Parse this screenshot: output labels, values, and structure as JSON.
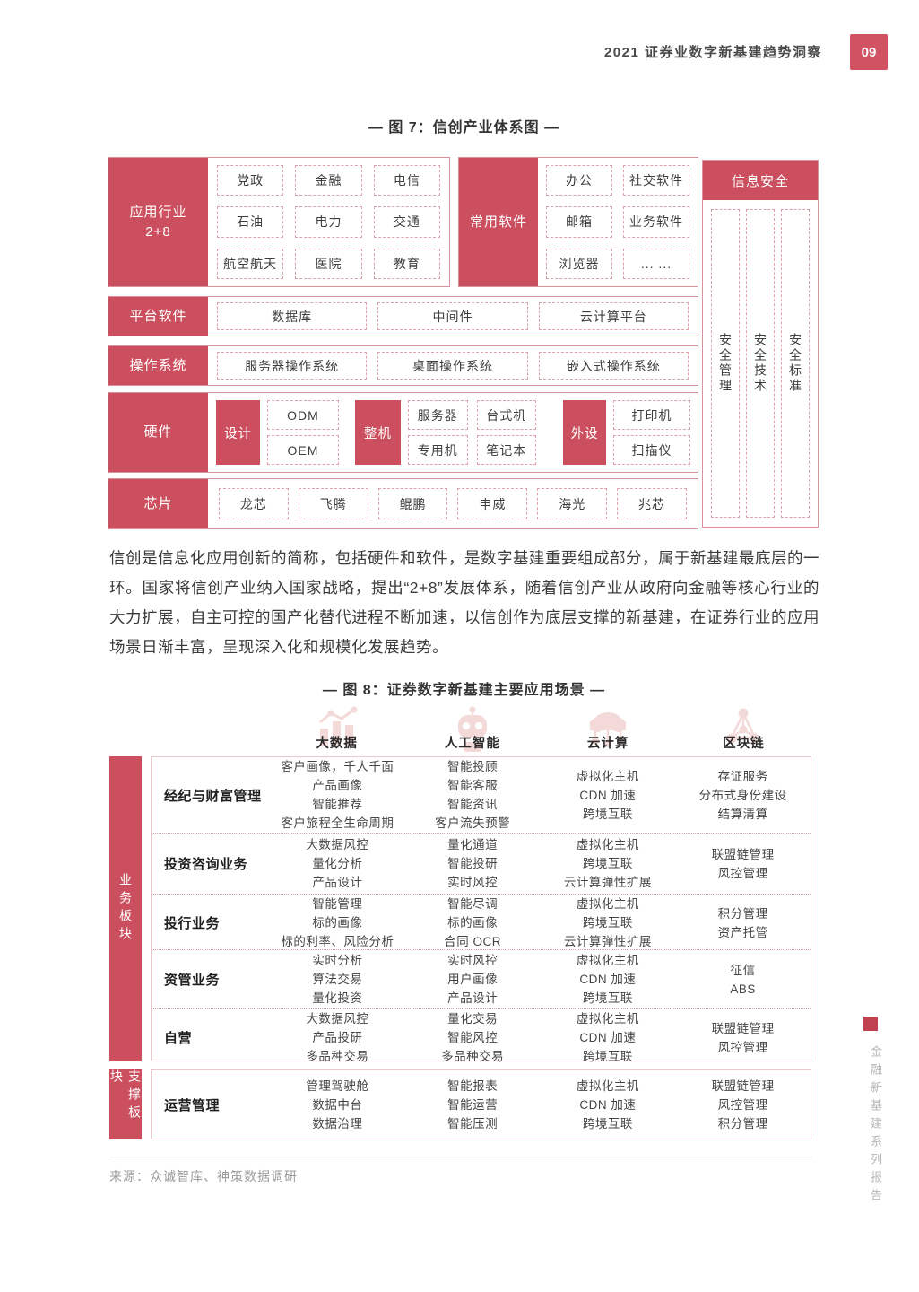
{
  "header": {
    "title": "2021 证券业数字新基建趋势洞察",
    "page_number": "09"
  },
  "fig7": {
    "title": "— 图 7：信创产业体系图 —",
    "rows": {
      "app": {
        "label": "应用行业\n2+8",
        "items": [
          "党政",
          "金融",
          "电信",
          "石油",
          "电力",
          "交通",
          "航空航天",
          "医院",
          "教育"
        ]
      },
      "software": {
        "label": "常用软件",
        "items": [
          "办公",
          "社交软件",
          "邮箱",
          "业务软件",
          "浏览器",
          "... ..."
        ]
      },
      "platform": {
        "label": "平台软件",
        "items": [
          "数据库",
          "中间件",
          "云计算平台"
        ]
      },
      "os": {
        "label": "操作系统",
        "items": [
          "服务器操作系统",
          "桌面操作系统",
          "嵌入式操作系统"
        ]
      },
      "hardware": {
        "label": "硬件",
        "groups": [
          {
            "label": "设计",
            "items": [
              "ODM",
              "OEM"
            ]
          },
          {
            "label": "整机",
            "items": [
              "服务器",
              "台式机",
              "专用机",
              "笔记本"
            ]
          },
          {
            "label": "外设",
            "items": [
              "打印机",
              "扫描仪"
            ]
          }
        ]
      },
      "chips": {
        "label": "芯片",
        "items": [
          "龙芯",
          "飞腾",
          "鲲鹏",
          "申威",
          "海光",
          "兆芯"
        ]
      }
    },
    "security": {
      "label": "信息安全",
      "columns": [
        "安全管理",
        "安全技术",
        "安全标准"
      ]
    }
  },
  "body_text": "信创是信息化应用创新的简称，包括硬件和软件，是数字基建重要组成部分，属于新基建最底层的一环。国家将信创产业纳入国家战略，提出“2+8”发展体系，随着信创产业从政府向金融等核心行业的大力扩展，自主可控的国产化替代进程不断加速，以信创作为底层支撑的新基建，在证券行业的应用场景日渐丰富，呈现深入化和规模化发展趋势。",
  "fig8": {
    "title": "— 图 8：证券数字新基建主要应用场景 —",
    "columns": [
      {
        "name": "大数据",
        "icon": "bar-chart-icon"
      },
      {
        "name": "人工智能",
        "icon": "robot-icon"
      },
      {
        "name": "云计算",
        "icon": "cloud-icon"
      },
      {
        "name": "区块链",
        "icon": "blockchain-icon"
      }
    ],
    "sections": [
      "业务板块",
      "支撑板块"
    ],
    "rows": [
      {
        "label": "经纪与财富管理",
        "section": 0,
        "cells": [
          [
            "客户画像，千人千面",
            "产品画像",
            "智能推荐",
            "客户旅程全生命周期"
          ],
          [
            "智能投顾",
            "智能客服",
            "智能资讯",
            "客户流失预警"
          ],
          [
            "虚拟化主机",
            "CDN 加速",
            "跨境互联"
          ],
          [
            "存证服务",
            "分布式身份建设",
            "结算清算"
          ]
        ]
      },
      {
        "label": "投资咨询业务",
        "section": 0,
        "cells": [
          [
            "大数据风控",
            "量化分析",
            "产品设计"
          ],
          [
            "量化通道",
            "智能投研",
            "实时风控"
          ],
          [
            "虚拟化主机",
            "跨境互联",
            "云计算弹性扩展"
          ],
          [
            "联盟链管理",
            "风控管理"
          ]
        ]
      },
      {
        "label": "投行业务",
        "section": 0,
        "cells": [
          [
            "智能管理",
            "标的画像",
            "标的利率、风险分析"
          ],
          [
            "智能尽调",
            "标的画像",
            "合同 OCR"
          ],
          [
            "虚拟化主机",
            "跨境互联",
            "云计算弹性扩展"
          ],
          [
            "积分管理",
            "资产托管"
          ]
        ]
      },
      {
        "label": "资管业务",
        "section": 0,
        "cells": [
          [
            "实时分析",
            "算法交易",
            "量化投资"
          ],
          [
            "实时风控",
            "用户画像",
            "产品设计"
          ],
          [
            "虚拟化主机",
            "CDN 加速",
            "跨境互联"
          ],
          [
            "征信",
            "ABS"
          ]
        ]
      },
      {
        "label": "自营",
        "section": 0,
        "cells": [
          [
            "大数据风控",
            "产品投研",
            "多品种交易"
          ],
          [
            "量化交易",
            "智能风控",
            "多品种交易"
          ],
          [
            "虚拟化主机",
            "CDN 加速",
            "跨境互联"
          ],
          [
            "联盟链管理",
            "风控管理"
          ]
        ]
      },
      {
        "label": "运营管理",
        "section": 1,
        "cells": [
          [
            "管理驾驶舱",
            "数据中台",
            "数据治理"
          ],
          [
            "智能报表",
            "智能运营",
            "智能压测"
          ],
          [
            "虚拟化主机",
            "CDN 加速",
            "跨境互联"
          ],
          [
            "联盟链管理",
            "风控管理",
            "积分管理"
          ]
        ]
      }
    ]
  },
  "source": "来源：众诚智库、神策数据调研",
  "side_note": "金融新基建系列报告",
  "colors": {
    "accent": "#cb4f5e",
    "border_pink": "#d9929b",
    "dashed_pink": "#dfa3aa",
    "text_gray": "#9b9b9b"
  }
}
